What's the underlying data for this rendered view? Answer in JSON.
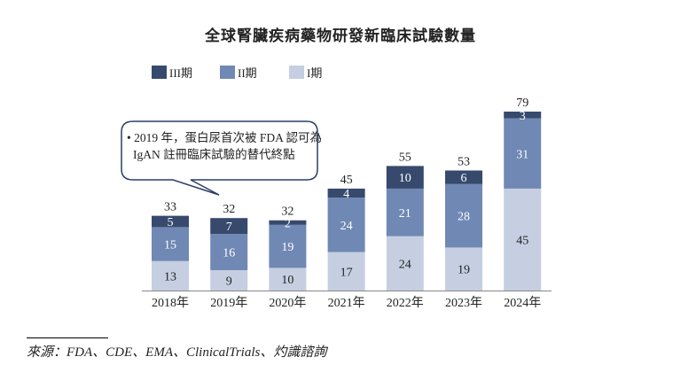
{
  "chart_data": {
    "type": "bar",
    "stacked": true,
    "title": "全球腎臟疾病藥物研發新臨床試驗數量",
    "categories": [
      "2018年",
      "2019年",
      "2020年",
      "2021年",
      "2022年",
      "2023年",
      "2024年"
    ],
    "series": [
      {
        "name": "I期",
        "color": "#c5cfe1",
        "values": [
          13,
          9,
          10,
          17,
          24,
          19,
          45
        ]
      },
      {
        "name": "II期",
        "color": "#7088b4",
        "values": [
          15,
          16,
          19,
          24,
          21,
          28,
          31
        ]
      },
      {
        "name": "III期",
        "color": "#374a6d",
        "values": [
          5,
          7,
          2,
          4,
          10,
          6,
          3
        ]
      }
    ],
    "totals": [
      33,
      32,
      32,
      45,
      55,
      53,
      79
    ],
    "legend_order": [
      "III期",
      "II期",
      "I期"
    ],
    "legend_position": "top",
    "grid": false,
    "annotation": {
      "line1": "• 2019 年，蛋白尿首次被 FDA 認可為",
      "line2": "IgAN 註冊臨床試驗的替代終點"
    }
  },
  "source": "來源：FDA、CDE、EMA、ClinicalTrials、灼識諮詢"
}
